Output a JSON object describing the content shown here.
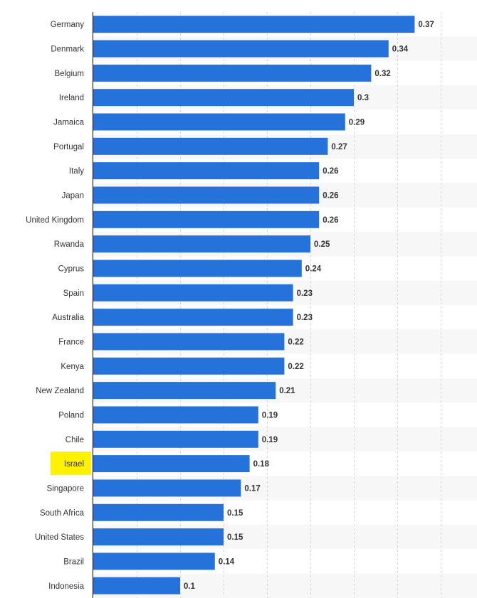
{
  "chart_data": {
    "type": "bar",
    "orientation": "horizontal",
    "categories": [
      "Germany",
      "Denmark",
      "Belgium",
      "Ireland",
      "Jamaica",
      "Portugal",
      "Italy",
      "Japan",
      "United Kingdom",
      "Rwanda",
      "Cyprus",
      "Spain",
      "Australia",
      "France",
      "Kenya",
      "New Zealand",
      "Poland",
      "Chile",
      "Israel",
      "Singapore",
      "South Africa",
      "United States",
      "Brazil",
      "Indonesia"
    ],
    "values": [
      0.37,
      0.34,
      0.32,
      0.3,
      0.29,
      0.27,
      0.26,
      0.26,
      0.26,
      0.25,
      0.24,
      0.23,
      0.23,
      0.22,
      0.22,
      0.21,
      0.19,
      0.19,
      0.18,
      0.17,
      0.15,
      0.15,
      0.14,
      0.1
    ],
    "value_labels": [
      "0.37",
      "0.34",
      "0.32",
      "0.3",
      "0.29",
      "0.27",
      "0.26",
      "0.26",
      "0.26",
      "0.25",
      "0.24",
      "0.23",
      "0.23",
      "0.22",
      "0.22",
      "0.21",
      "0.19",
      "0.19",
      "0.18",
      "0.17",
      "0.15",
      "0.15",
      "0.14",
      "0.1"
    ],
    "highlighted_category": "Israel",
    "xlim": [
      0,
      0.45
    ],
    "grid_step": 0.05,
    "grid": true,
    "title": "",
    "xlabel": "",
    "ylabel": ""
  },
  "colors": {
    "bar": "#2672db",
    "highlight": "#fff200",
    "band": "#f7f7f7",
    "grid": "#d6d6d6",
    "text": "#333333"
  }
}
